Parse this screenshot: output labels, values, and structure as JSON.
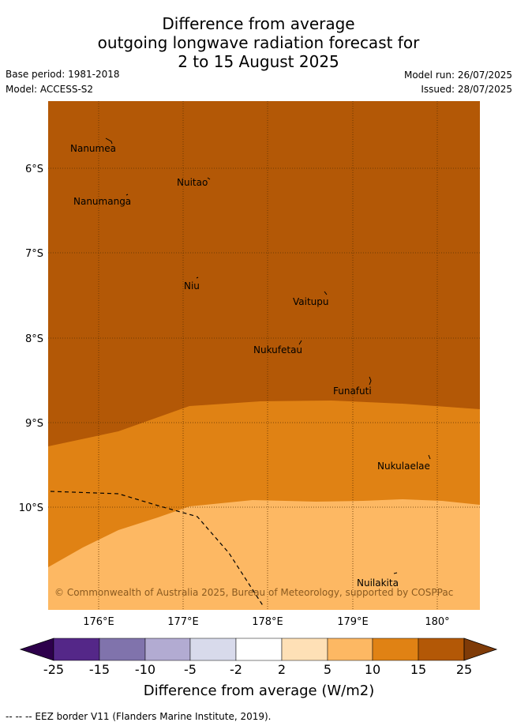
{
  "title": {
    "line1": "Difference from average",
    "line2": "outgoing longwave radiation forecast for",
    "line3": "2 to 15 August 2025"
  },
  "meta": {
    "base_period": "Base period: 1981-2018",
    "model": "Model: ACCESS-S2",
    "model_run": "Model run: 26/07/2025",
    "issued": "Issued: 28/07/2025"
  },
  "map": {
    "lat_labels": [
      "6°S",
      "7°S",
      "8°S",
      "9°S",
      "10°S"
    ],
    "lon_labels": [
      "176°E",
      "177°E",
      "178°E",
      "179°E",
      "180°"
    ],
    "places": [
      "Nanumea",
      "Nuitao",
      "Nanumanga",
      "Niu",
      "Vaitupu",
      "Nukufetau",
      "Funafuti",
      "Nukulaelae",
      "Nuilakita"
    ],
    "copyright": "© Commonwealth of Australia 2025, Bureau of Meteorology, supported by COSPPac",
    "fill_colors": {
      "high": "#b35806",
      "mid": "#e08214",
      "low": "#fdb863"
    }
  },
  "colorbar": {
    "ticks": [
      "-25",
      "-15",
      "-10",
      "-5",
      "-2",
      "2",
      "5",
      "10",
      "15",
      "25"
    ],
    "colors": [
      "#542788",
      "#8073ac",
      "#b2abd2",
      "#d8daeb",
      "#ffffff",
      "#fee0b6",
      "#fdb863",
      "#e08214",
      "#b35806"
    ],
    "under_color": "#2d004b",
    "over_color": "#7f3b08",
    "label": "Difference from average (W/m2)"
  },
  "footer": "-- -- -- EEZ border V11 (Flanders Marine Institute, 2019)."
}
